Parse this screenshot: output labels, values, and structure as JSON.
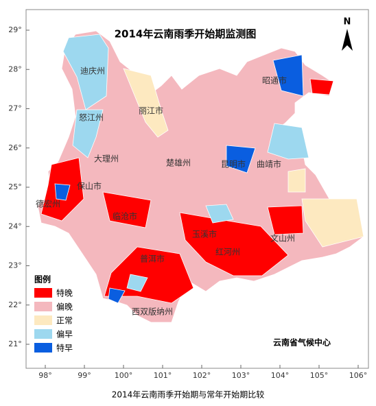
{
  "map": {
    "title": "2014年云南雨季开始期监测图",
    "caption": "2014年云南雨季开始期与常年开始期比较",
    "credit": "云南省气候中心",
    "north": "N",
    "xticks": [
      {
        "value": 98,
        "label": "98°"
      },
      {
        "value": 99,
        "label": "99°"
      },
      {
        "value": 100,
        "label": "100°"
      },
      {
        "value": 101,
        "label": "101°"
      },
      {
        "value": 102,
        "label": "102°"
      },
      {
        "value": 103,
        "label": "103°"
      },
      {
        "value": 104,
        "label": "104°"
      },
      {
        "value": 105,
        "label": "105°"
      },
      {
        "value": 106,
        "label": "106°"
      }
    ],
    "yticks": [
      {
        "value": 21,
        "label": "21°"
      },
      {
        "value": 22,
        "label": "22°"
      },
      {
        "value": 23,
        "label": "23°"
      },
      {
        "value": 24,
        "label": "24°"
      },
      {
        "value": 25,
        "label": "25°"
      },
      {
        "value": 26,
        "label": "26°"
      },
      {
        "value": 27,
        "label": "27°"
      },
      {
        "value": 28,
        "label": "28°"
      },
      {
        "value": 29,
        "label": "29°"
      }
    ],
    "legend": {
      "title": "图例",
      "items": [
        {
          "label": "特晚",
          "color": "#ff0000"
        },
        {
          "label": "偏晚",
          "color": "#f4b8be"
        },
        {
          "label": "正常",
          "color": "#fde9c0"
        },
        {
          "label": "偏早",
          "color": "#9dd8ef"
        },
        {
          "label": "特早",
          "color": "#0a5ee0"
        }
      ]
    },
    "labels": [
      "迪庆州",
      "怒江州",
      "丽江市",
      "大理州",
      "保山市",
      "德宏州",
      "临沧市",
      "楚雄州",
      "昆明市",
      "曲靖市",
      "昭通市",
      "玉溪市",
      "红河州",
      "文山州",
      "普洱市",
      "西双版纳州"
    ]
  }
}
